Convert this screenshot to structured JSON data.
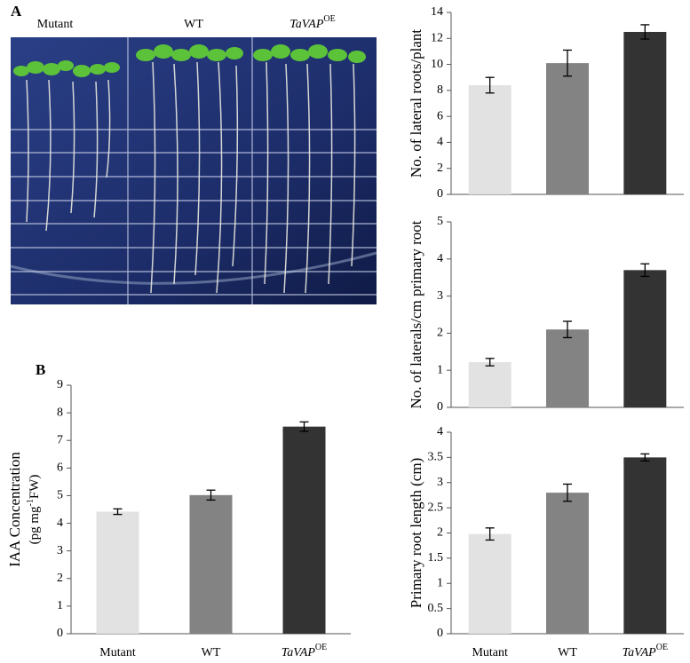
{
  "figure": {
    "panel_a": "A",
    "panel_b": "B",
    "photo_labels": [
      "Mutant",
      "WT",
      {
        "text": "TaVAP",
        "sup": "OE"
      }
    ]
  },
  "chart_data": [
    {
      "type": "bar",
      "ylabel": "No. of lateral roots/plant",
      "categories": [
        null,
        null,
        null
      ],
      "values": [
        8.4,
        10.1,
        12.5
      ],
      "errors": [
        0.6,
        1.0,
        0.55
      ],
      "colors": [
        "#e2e2e2",
        "#838383",
        "#333333"
      ],
      "ylim": [
        0,
        14
      ],
      "yticks": [
        0,
        2,
        4,
        6,
        8,
        10,
        12,
        14
      ]
    },
    {
      "type": "bar",
      "ylabel": "No. of laterals/cm primary root",
      "categories": [
        null,
        null,
        null
      ],
      "values": [
        1.22,
        2.1,
        3.7
      ],
      "errors": [
        0.1,
        0.22,
        0.17
      ],
      "colors": [
        "#e2e2e2",
        "#838383",
        "#333333"
      ],
      "ylim": [
        0,
        5
      ],
      "yticks": [
        0,
        1,
        2,
        3,
        4,
        5
      ]
    },
    {
      "type": "bar",
      "ylabel": "Primary root length (cm)",
      "categories": [
        "Mutant",
        "WT",
        {
          "text": "TaVAP",
          "sup": "OE"
        }
      ],
      "values": [
        1.98,
        2.8,
        3.5
      ],
      "errors": [
        0.12,
        0.17,
        0.07
      ],
      "colors": [
        "#e2e2e2",
        "#838383",
        "#333333"
      ],
      "ylim": [
        0,
        4
      ],
      "yticks": [
        0,
        0.5,
        1,
        1.5,
        2,
        2.5,
        3,
        3.5,
        4
      ]
    },
    {
      "type": "bar",
      "ylabel": "IAA Concentration",
      "ylabel2": {
        "before": "(pg mg",
        "sup": "-1",
        "after": "FW)"
      },
      "categories": [
        "Mutant",
        "WT",
        {
          "text": "TaVAP",
          "sup": "OE"
        }
      ],
      "values": [
        4.42,
        5.02,
        7.5
      ],
      "errors": [
        0.1,
        0.18,
        0.17
      ],
      "colors": [
        "#e2e2e2",
        "#838383",
        "#333333"
      ],
      "ylim": [
        0,
        9
      ],
      "yticks": [
        0,
        1,
        2,
        3,
        4,
        5,
        6,
        7,
        8,
        9
      ]
    }
  ]
}
